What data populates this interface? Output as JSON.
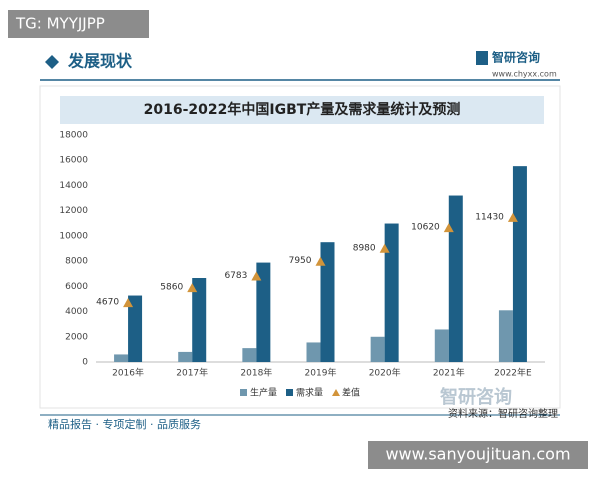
{
  "page": {
    "tag": "TG: MYYJJPP",
    "section_title": "发展现状",
    "brand": "智研咨询",
    "brand_url": "www.chyxx.com",
    "source": "资料来源：智研咨询整理",
    "slogan": "精品报告 · 专项定制 · 品质服务",
    "site": "www.sanyoujituan.com"
  },
  "chart_data": {
    "type": "bar",
    "title": "2016-2022年中国IGBT产量及需求量统计及预测",
    "categories": [
      "2016年",
      "2017年",
      "2018年",
      "2019年",
      "2020年",
      "2021年",
      "2022年E"
    ],
    "series": [
      {
        "name": "生产量",
        "color": "#6f97ae",
        "values": [
          600,
          800,
          1100,
          1550,
          2000,
          2580,
          4100
        ]
      },
      {
        "name": "需求量",
        "color": "#1d5f86",
        "values": [
          5270,
          6660,
          7883,
          9500,
          10980,
          13200,
          15530
        ]
      },
      {
        "name": "差值",
        "color": "#d2943a",
        "marker": "triangle",
        "values": [
          4670,
          5860,
          6783,
          7950,
          8980,
          10620,
          11430
        ]
      }
    ],
    "ylim": [
      0,
      18000
    ],
    "yticks": [
      0,
      2000,
      4000,
      6000,
      8000,
      10000,
      12000,
      14000,
      16000,
      18000
    ],
    "grid": false,
    "legend": "bottom"
  }
}
